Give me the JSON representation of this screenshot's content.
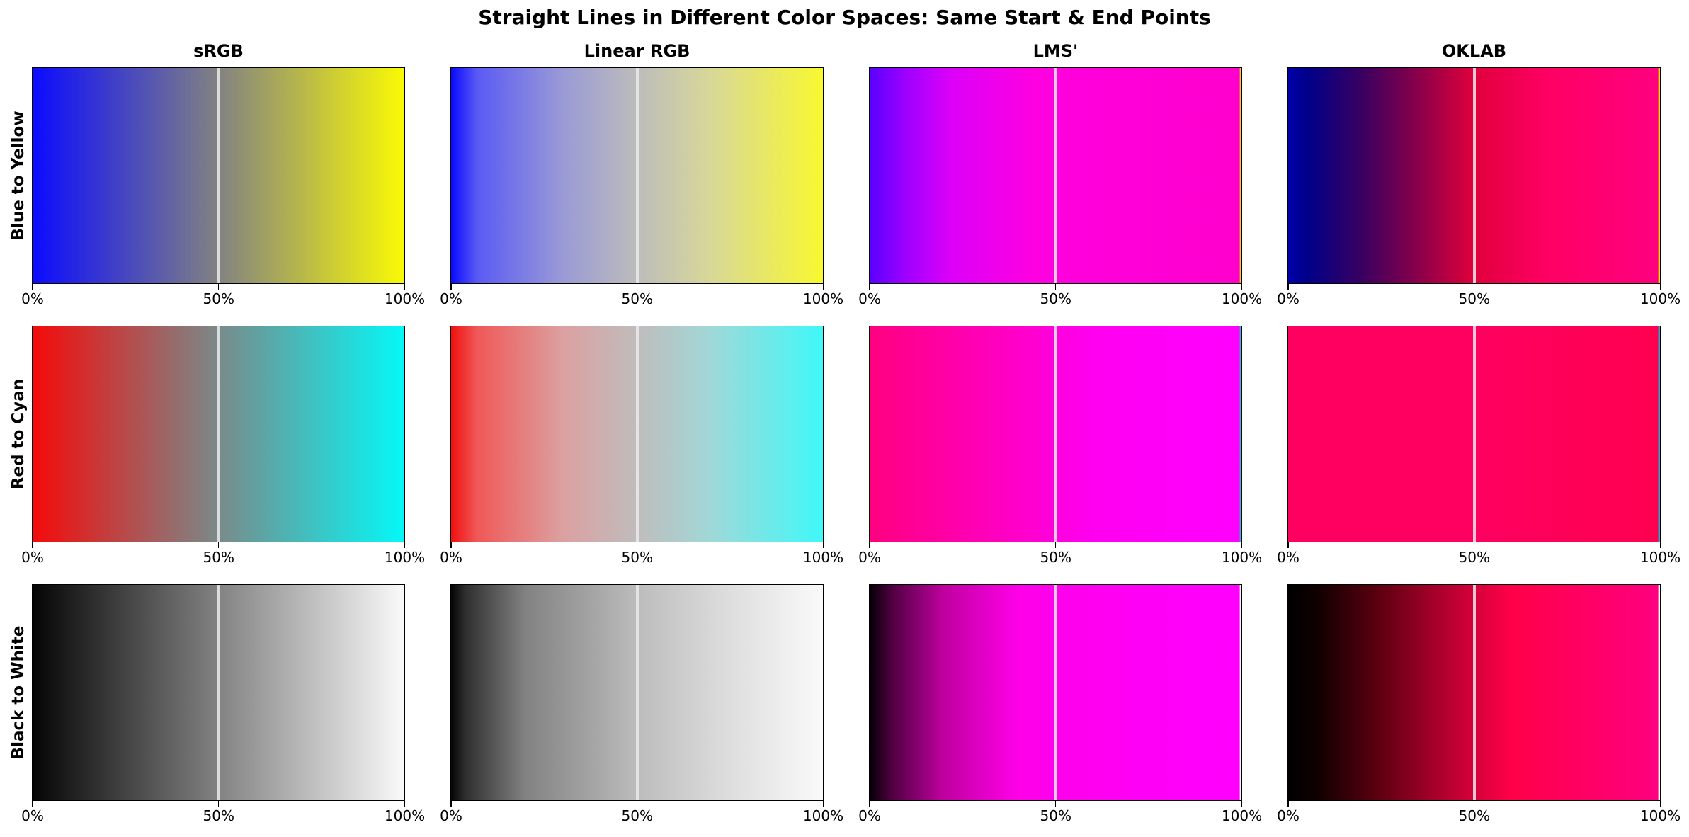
{
  "title": "Straight Lines in Different Color Spaces: Same Start & End Points",
  "chart_data": {
    "type": "heatmap",
    "columns": [
      "sRGB",
      "Linear RGB",
      "LMS'",
      "OKLAB"
    ],
    "rows": [
      "Blue to Yellow",
      "Red to Cyan",
      "Black to White"
    ],
    "xticks": [
      "0%",
      "50%",
      "100%"
    ],
    "xtick_values": [
      0,
      0.5,
      1.0
    ],
    "midline_at": 0.5,
    "panels": [
      [
        {
          "stops": [
            [
              0,
              "#0b0bff"
            ],
            [
              0.5,
              "#828282"
            ],
            [
              1,
              "#fafa05"
            ]
          ]
        },
        {
          "stops": [
            [
              0,
              "#0a0aff"
            ],
            [
              0.07,
              "#5a5af5"
            ],
            [
              0.3,
              "#9a9ad6"
            ],
            [
              0.5,
              "#bcbcbc"
            ],
            [
              0.7,
              "#d8d898"
            ],
            [
              1,
              "#f8f830"
            ]
          ]
        },
        {
          "stops": [
            [
              0,
              "#5a00ff"
            ],
            [
              0.1,
              "#a000ff"
            ],
            [
              0.22,
              "#dc00f8"
            ],
            [
              0.45,
              "#ff00e0"
            ],
            [
              0.995,
              "#ff00cc"
            ],
            [
              0.996,
              "#f0d000"
            ],
            [
              1,
              "#ffd700"
            ]
          ]
        },
        {
          "stops": [
            [
              0,
              "#0000a8"
            ],
            [
              0.05,
              "#00008a"
            ],
            [
              0.2,
              "#3a0060"
            ],
            [
              0.35,
              "#8a004a"
            ],
            [
              0.5,
              "#e0003c"
            ],
            [
              0.7,
              "#ff0064"
            ],
            [
              0.995,
              "#ff0080"
            ],
            [
              0.996,
              "#f0d000"
            ],
            [
              1,
              "#ffd700"
            ]
          ]
        }
      ],
      [
        {
          "stops": [
            [
              0,
              "#f50a0a"
            ],
            [
              0.5,
              "#7a8a8a"
            ],
            [
              1,
              "#05f8f8"
            ]
          ]
        },
        {
          "stops": [
            [
              0,
              "#f01010"
            ],
            [
              0.07,
              "#f05858"
            ],
            [
              0.3,
              "#dca0a0"
            ],
            [
              0.5,
              "#c0bcbc"
            ],
            [
              0.7,
              "#a0d8d8"
            ],
            [
              1,
              "#40f8f8"
            ]
          ]
        },
        {
          "stops": [
            [
              0,
              "#ff0080"
            ],
            [
              0.35,
              "#ff00c0"
            ],
            [
              0.6,
              "#ff00f0"
            ],
            [
              0.995,
              "#ff00ff"
            ],
            [
              0.996,
              "#20c0e0"
            ],
            [
              1,
              "#20c0e0"
            ]
          ]
        },
        {
          "stops": [
            [
              0,
              "#ff0060"
            ],
            [
              0.5,
              "#ff0060"
            ],
            [
              0.995,
              "#ff0050"
            ],
            [
              0.996,
              "#20b0c8"
            ],
            [
              1,
              "#20b0c8"
            ]
          ]
        }
      ],
      [
        {
          "stops": [
            [
              0,
              "#050505"
            ],
            [
              0.5,
              "#828282"
            ],
            [
              1,
              "#fafafa"
            ]
          ]
        },
        {
          "stops": [
            [
              0,
              "#050505"
            ],
            [
              0.04,
              "#303030"
            ],
            [
              0.2,
              "#828282"
            ],
            [
              0.5,
              "#bcbcbc"
            ],
            [
              0.75,
              "#dedede"
            ],
            [
              1,
              "#fafafa"
            ]
          ]
        },
        {
          "stops": [
            [
              0,
              "#050005"
            ],
            [
              0.06,
              "#500040"
            ],
            [
              0.2,
              "#c000a0"
            ],
            [
              0.4,
              "#ff00e8"
            ],
            [
              0.995,
              "#ff00ff"
            ],
            [
              0.996,
              "#ffffff"
            ],
            [
              1,
              "#ffffff"
            ]
          ]
        },
        {
          "stops": [
            [
              0,
              "#000000"
            ],
            [
              0.08,
              "#100000"
            ],
            [
              0.25,
              "#600010"
            ],
            [
              0.45,
              "#c00034"
            ],
            [
              0.6,
              "#ff0048"
            ],
            [
              0.995,
              "#ff0080"
            ],
            [
              0.996,
              "#ffffff"
            ],
            [
              1,
              "#ffffff"
            ]
          ]
        }
      ]
    ]
  }
}
